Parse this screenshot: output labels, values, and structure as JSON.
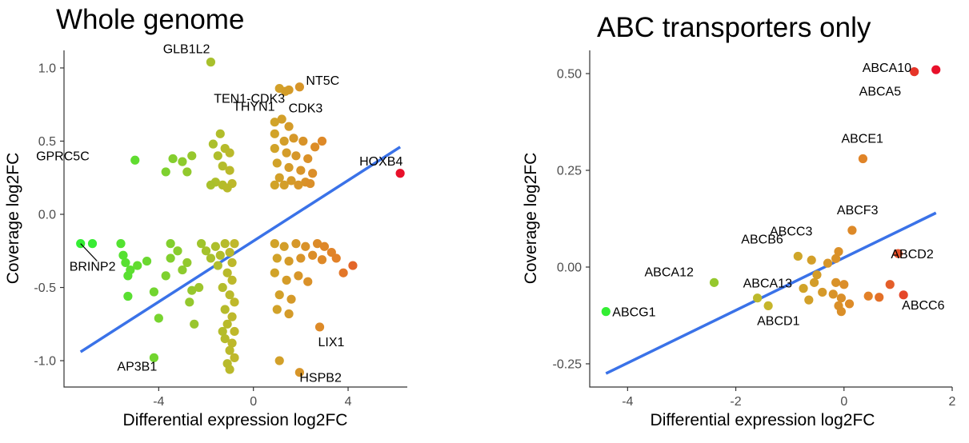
{
  "chart_data": [
    {
      "type": "scatter",
      "title": "Whole genome",
      "xlabel": "Differential expression log2FC",
      "ylabel": "Coverage log2FC",
      "xlim": [
        -8,
        6.5
      ],
      "ylim": [
        -1.18,
        1.12
      ],
      "xticks": [
        -4,
        0,
        4
      ],
      "xtick_labels": [
        "-4",
        "0",
        "4"
      ],
      "yticks": [
        -1.0,
        -0.5,
        0.0,
        0.5,
        1.0
      ],
      "ytick_labels": [
        "-1.0",
        "-0.5",
        "0.0",
        "0.5",
        "1.0"
      ],
      "grid": false,
      "legend": "none",
      "color_scale": {
        "low": "#33ee33",
        "mid": "#c8b42a",
        "high": "#e8102a",
        "domain": [
          -7,
          6.2
        ]
      },
      "fit_line": {
        "x": [
          -7.3,
          6.2
        ],
        "y": [
          -0.94,
          0.46
        ],
        "color": "#3a72e8"
      },
      "points": [
        {
          "x": -1.8,
          "y": 1.04,
          "label": "GLB1L2"
        },
        {
          "x": 1.1,
          "y": 0.86,
          "label": "TEN1-CDK3"
        },
        {
          "x": 1.95,
          "y": 0.87,
          "label": "NT5C"
        },
        {
          "x": 1.5,
          "y": 0.85,
          "label": "THYN1"
        },
        {
          "x": 1.35,
          "y": 0.84,
          "label": "CDK3"
        },
        {
          "x": -5.0,
          "y": 0.37,
          "label": "GPRC5C"
        },
        {
          "x": 6.2,
          "y": 0.28,
          "label": "HOXB4"
        },
        {
          "x": -7.3,
          "y": -0.2,
          "label": "BRINP2"
        },
        {
          "x": -4.2,
          "y": -0.98,
          "label": "AP3B1"
        },
        {
          "x": 2.8,
          "y": -0.77,
          "label": "LIX1"
        },
        {
          "x": 1.1,
          "y": -1.0,
          "label": ""
        },
        {
          "x": 1.95,
          "y": -1.08,
          "label": "HSPB2"
        },
        {
          "x": -6.8,
          "y": -0.2,
          "label": ""
        },
        {
          "x": -5.6,
          "y": -0.2,
          "label": ""
        },
        {
          "x": -5.5,
          "y": -0.28,
          "label": ""
        },
        {
          "x": -5.4,
          "y": -0.33,
          "label": ""
        },
        {
          "x": -5.2,
          "y": -0.38,
          "label": ""
        },
        {
          "x": -5.3,
          "y": -0.42,
          "label": ""
        },
        {
          "x": -4.9,
          "y": -0.35,
          "label": ""
        },
        {
          "x": -4.5,
          "y": -0.32,
          "label": ""
        },
        {
          "x": -5.3,
          "y": -0.56,
          "label": ""
        },
        {
          "x": -4.2,
          "y": -0.53,
          "label": ""
        },
        {
          "x": -4.0,
          "y": -0.71,
          "label": ""
        },
        {
          "x": -3.7,
          "y": -0.42,
          "label": ""
        },
        {
          "x": -3.5,
          "y": -0.3,
          "label": ""
        },
        {
          "x": -3.2,
          "y": -0.25,
          "label": ""
        },
        {
          "x": -3.0,
          "y": -0.38,
          "label": ""
        },
        {
          "x": -2.8,
          "y": -0.33,
          "label": ""
        },
        {
          "x": -3.5,
          "y": -0.2,
          "label": ""
        },
        {
          "x": -3.7,
          "y": 0.29,
          "label": ""
        },
        {
          "x": -3.4,
          "y": 0.38,
          "label": ""
        },
        {
          "x": -3.0,
          "y": 0.36,
          "label": ""
        },
        {
          "x": -2.8,
          "y": 0.29,
          "label": ""
        },
        {
          "x": -2.6,
          "y": 0.4,
          "label": ""
        },
        {
          "x": -1.7,
          "y": 0.48,
          "label": ""
        },
        {
          "x": -1.4,
          "y": 0.55,
          "label": ""
        },
        {
          "x": -1.2,
          "y": 0.45,
          "label": ""
        },
        {
          "x": -1.0,
          "y": 0.42,
          "label": ""
        },
        {
          "x": -1.5,
          "y": 0.4,
          "label": ""
        },
        {
          "x": -1.3,
          "y": 0.33,
          "label": ""
        },
        {
          "x": -1.0,
          "y": 0.3,
          "label": ""
        },
        {
          "x": -1.6,
          "y": 0.22,
          "label": ""
        },
        {
          "x": -1.3,
          "y": 0.2,
          "label": ""
        },
        {
          "x": -0.9,
          "y": 0.21,
          "label": ""
        },
        {
          "x": -1.1,
          "y": 0.18,
          "label": ""
        },
        {
          "x": -1.8,
          "y": 0.2,
          "label": ""
        },
        {
          "x": -2.7,
          "y": -0.6,
          "label": ""
        },
        {
          "x": -2.6,
          "y": -0.52,
          "label": ""
        },
        {
          "x": -2.3,
          "y": -0.5,
          "label": ""
        },
        {
          "x": -2.5,
          "y": -0.75,
          "label": ""
        },
        {
          "x": -2.2,
          "y": -0.2,
          "label": ""
        },
        {
          "x": -2.0,
          "y": -0.25,
          "label": ""
        },
        {
          "x": -1.8,
          "y": -0.3,
          "label": ""
        },
        {
          "x": -1.6,
          "y": -0.22,
          "label": ""
        },
        {
          "x": -1.4,
          "y": -0.28,
          "label": ""
        },
        {
          "x": -1.2,
          "y": -0.2,
          "label": ""
        },
        {
          "x": -1.0,
          "y": -0.26,
          "label": ""
        },
        {
          "x": -0.8,
          "y": -0.2,
          "label": ""
        },
        {
          "x": -1.5,
          "y": -0.35,
          "label": ""
        },
        {
          "x": -1.1,
          "y": -0.4,
          "label": ""
        },
        {
          "x": -0.9,
          "y": -0.45,
          "label": ""
        },
        {
          "x": -1.3,
          "y": -0.5,
          "label": ""
        },
        {
          "x": -1.0,
          "y": -0.55,
          "label": ""
        },
        {
          "x": -0.8,
          "y": -0.6,
          "label": ""
        },
        {
          "x": -1.2,
          "y": -0.65,
          "label": ""
        },
        {
          "x": -0.9,
          "y": -0.7,
          "label": ""
        },
        {
          "x": -1.1,
          "y": -0.75,
          "label": ""
        },
        {
          "x": -0.8,
          "y": -0.8,
          "label": ""
        },
        {
          "x": -1.2,
          "y": -0.85,
          "label": ""
        },
        {
          "x": -0.9,
          "y": -0.88,
          "label": ""
        },
        {
          "x": -1.0,
          "y": -0.93,
          "label": ""
        },
        {
          "x": -0.8,
          "y": -0.98,
          "label": ""
        },
        {
          "x": -1.1,
          "y": -1.02,
          "label": ""
        },
        {
          "x": -1.0,
          "y": -1.06,
          "label": ""
        },
        {
          "x": -0.9,
          "y": -0.33,
          "label": ""
        },
        {
          "x": -1.3,
          "y": -0.8,
          "label": ""
        },
        {
          "x": 0.9,
          "y": 0.63,
          "label": ""
        },
        {
          "x": 1.2,
          "y": 0.65,
          "label": ""
        },
        {
          "x": 1.5,
          "y": 0.6,
          "label": ""
        },
        {
          "x": 0.9,
          "y": 0.55,
          "label": ""
        },
        {
          "x": 1.3,
          "y": 0.5,
          "label": ""
        },
        {
          "x": 1.7,
          "y": 0.52,
          "label": ""
        },
        {
          "x": 2.1,
          "y": 0.5,
          "label": ""
        },
        {
          "x": 2.9,
          "y": 0.5,
          "label": ""
        },
        {
          "x": 2.6,
          "y": 0.46,
          "label": ""
        },
        {
          "x": 0.9,
          "y": 0.45,
          "label": ""
        },
        {
          "x": 1.4,
          "y": 0.42,
          "label": ""
        },
        {
          "x": 1.8,
          "y": 0.4,
          "label": ""
        },
        {
          "x": 2.3,
          "y": 0.38,
          "label": ""
        },
        {
          "x": 1.0,
          "y": 0.35,
          "label": ""
        },
        {
          "x": 1.5,
          "y": 0.32,
          "label": ""
        },
        {
          "x": 2.0,
          "y": 0.3,
          "label": ""
        },
        {
          "x": 2.5,
          "y": 0.28,
          "label": ""
        },
        {
          "x": 1.1,
          "y": 0.25,
          "label": ""
        },
        {
          "x": 1.6,
          "y": 0.23,
          "label": ""
        },
        {
          "x": 2.2,
          "y": 0.22,
          "label": ""
        },
        {
          "x": 0.9,
          "y": 0.2,
          "label": ""
        },
        {
          "x": 1.3,
          "y": 0.2,
          "label": ""
        },
        {
          "x": 1.9,
          "y": 0.2,
          "label": ""
        },
        {
          "x": 2.4,
          "y": 0.21,
          "label": ""
        },
        {
          "x": 0.9,
          "y": -0.2,
          "label": ""
        },
        {
          "x": 1.3,
          "y": -0.22,
          "label": ""
        },
        {
          "x": 1.8,
          "y": -0.2,
          "label": ""
        },
        {
          "x": 2.2,
          "y": -0.22,
          "label": ""
        },
        {
          "x": 2.7,
          "y": -0.2,
          "label": ""
        },
        {
          "x": 1.0,
          "y": -0.3,
          "label": ""
        },
        {
          "x": 1.5,
          "y": -0.32,
          "label": ""
        },
        {
          "x": 2.0,
          "y": -0.3,
          "label": ""
        },
        {
          "x": 2.5,
          "y": -0.28,
          "label": ""
        },
        {
          "x": 2.9,
          "y": -0.31,
          "label": ""
        },
        {
          "x": 3.3,
          "y": -0.26,
          "label": ""
        },
        {
          "x": 3.0,
          "y": -0.22,
          "label": ""
        },
        {
          "x": 0.9,
          "y": -0.4,
          "label": ""
        },
        {
          "x": 1.4,
          "y": -0.45,
          "label": ""
        },
        {
          "x": 1.9,
          "y": -0.42,
          "label": ""
        },
        {
          "x": 2.3,
          "y": -0.46,
          "label": ""
        },
        {
          "x": 1.1,
          "y": -0.55,
          "label": ""
        },
        {
          "x": 1.6,
          "y": -0.58,
          "label": ""
        },
        {
          "x": 1.0,
          "y": -0.65,
          "label": ""
        },
        {
          "x": 1.5,
          "y": -0.68,
          "label": ""
        },
        {
          "x": 4.2,
          "y": -0.35,
          "label": ""
        },
        {
          "x": 3.8,
          "y": -0.4,
          "label": ""
        },
        {
          "x": 3.5,
          "y": -0.3,
          "label": ""
        }
      ]
    },
    {
      "type": "scatter",
      "title": "ABC transporters only",
      "xlabel": "Differential expression log2FC",
      "ylabel": "Coverage log2FC",
      "xlim": [
        -4.7,
        2.0
      ],
      "ylim": [
        -0.31,
        0.56
      ],
      "xticks": [
        -4,
        -2,
        0,
        2
      ],
      "xtick_labels": [
        "-4",
        "-2",
        "0",
        "2"
      ],
      "yticks": [
        -0.25,
        0.0,
        0.25,
        0.5
      ],
      "ytick_labels": [
        "-0.25",
        "0.00",
        "0.25",
        "0.50"
      ],
      "grid": false,
      "legend": "none",
      "color_scale": {
        "low": "#33ee33",
        "mid": "#c8b42a",
        "high": "#e8102a",
        "domain": [
          -4.4,
          1.7
        ]
      },
      "fit_line": {
        "x": [
          -4.4,
          1.7
        ],
        "y": [
          -0.275,
          0.14
        ],
        "color": "#3a72e8"
      },
      "points": [
        {
          "x": 1.7,
          "y": 0.51,
          "label": "ABCA10"
        },
        {
          "x": 1.3,
          "y": 0.505,
          "label": "ABCA5"
        },
        {
          "x": 0.35,
          "y": 0.28,
          "label": "ABCE1"
        },
        {
          "x": 0.15,
          "y": 0.095,
          "label": "ABCF3"
        },
        {
          "x": -0.85,
          "y": 0.028,
          "label": "ABCB6"
        },
        {
          "x": -0.1,
          "y": 0.04,
          "label": "ABCC3"
        },
        {
          "x": 1.0,
          "y": 0.035,
          "label": "ABCD2"
        },
        {
          "x": -2.4,
          "y": -0.04,
          "label": "ABCA12"
        },
        {
          "x": -1.6,
          "y": -0.08,
          "label": "ABCA13"
        },
        {
          "x": -1.4,
          "y": -0.1,
          "label": "ABCD1"
        },
        {
          "x": 1.1,
          "y": -0.072,
          "label": "ABCC6"
        },
        {
          "x": -4.4,
          "y": -0.115,
          "label": "ABCG1"
        },
        {
          "x": -0.6,
          "y": 0.018,
          "label": ""
        },
        {
          "x": -0.3,
          "y": 0.01,
          "label": ""
        },
        {
          "x": -0.5,
          "y": -0.02,
          "label": ""
        },
        {
          "x": -0.15,
          "y": -0.04,
          "label": ""
        },
        {
          "x": -0.55,
          "y": -0.04,
          "label": ""
        },
        {
          "x": -0.75,
          "y": -0.055,
          "label": ""
        },
        {
          "x": -0.4,
          "y": -0.065,
          "label": ""
        },
        {
          "x": -0.2,
          "y": -0.07,
          "label": ""
        },
        {
          "x": 0.0,
          "y": -0.045,
          "label": ""
        },
        {
          "x": -0.05,
          "y": -0.08,
          "label": ""
        },
        {
          "x": -0.65,
          "y": -0.085,
          "label": ""
        },
        {
          "x": -0.1,
          "y": -0.1,
          "label": ""
        },
        {
          "x": -0.05,
          "y": -0.115,
          "label": ""
        },
        {
          "x": 0.1,
          "y": -0.095,
          "label": ""
        },
        {
          "x": 0.45,
          "y": -0.075,
          "label": ""
        },
        {
          "x": 0.65,
          "y": -0.078,
          "label": ""
        },
        {
          "x": 0.85,
          "y": -0.045,
          "label": ""
        },
        {
          "x": -0.15,
          "y": 0.022,
          "label": ""
        }
      ]
    }
  ]
}
